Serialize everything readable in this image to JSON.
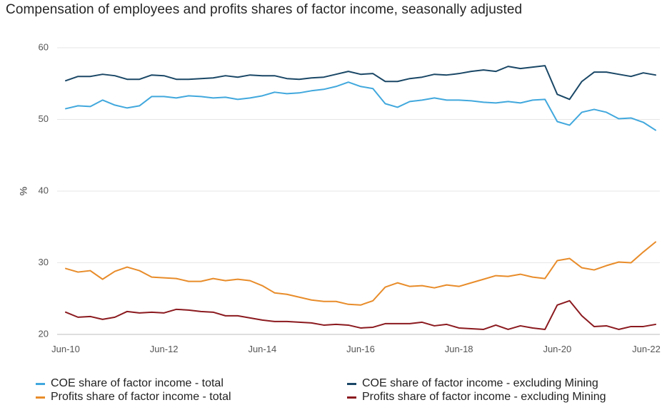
{
  "chart_data": {
    "type": "line",
    "title": "Compensation of employees and profits shares of factor income, seasonally adjusted",
    "ylabel": "%",
    "ylim": [
      20,
      60
    ],
    "yticks": [
      20,
      30,
      40,
      50,
      60
    ],
    "grid": true,
    "legend_position": "bottom",
    "x_start_label": "Jun-10",
    "x_tick_labels": [
      "Jun-10",
      "Jun-12",
      "Jun-14",
      "Jun-16",
      "Jun-18",
      "Jun-20",
      "Jun-22"
    ],
    "x_tick_index": [
      0,
      8,
      16,
      24,
      32,
      40,
      48
    ],
    "series": [
      {
        "name": "COE share of factor income - total",
        "color": "#41A8DD",
        "values": [
          51.5,
          51.9,
          51.8,
          52.7,
          52.0,
          51.6,
          51.9,
          53.2,
          53.2,
          53.0,
          53.3,
          53.2,
          53.0,
          53.1,
          52.8,
          53.0,
          53.3,
          53.8,
          53.6,
          53.7,
          54.0,
          54.2,
          54.6,
          55.2,
          54.6,
          54.3,
          52.2,
          51.7,
          52.5,
          52.7,
          53.0,
          52.7,
          52.7,
          52.6,
          52.4,
          52.3,
          52.5,
          52.3,
          52.7,
          52.8,
          49.7,
          49.2,
          51.0,
          51.4,
          51.0,
          50.1,
          50.2,
          49.6,
          48.5
        ]
      },
      {
        "name": "COE share of factor income - excluding Mining",
        "color": "#1A4766",
        "values": [
          55.4,
          56.0,
          56.0,
          56.3,
          56.1,
          55.6,
          55.6,
          56.2,
          56.1,
          55.6,
          55.6,
          55.7,
          55.8,
          56.1,
          55.9,
          56.2,
          56.1,
          56.1,
          55.7,
          55.6,
          55.8,
          55.9,
          56.3,
          56.7,
          56.3,
          56.4,
          55.3,
          55.3,
          55.7,
          55.9,
          56.3,
          56.2,
          56.4,
          56.7,
          56.9,
          56.7,
          57.4,
          57.1,
          57.3,
          57.5,
          53.5,
          52.8,
          55.3,
          56.6,
          56.6,
          56.3,
          56.0,
          56.5,
          56.2
        ]
      },
      {
        "name": "Profits share of factor income - total",
        "color": "#E88C2A",
        "values": [
          29.2,
          28.7,
          28.9,
          27.7,
          28.8,
          29.4,
          28.9,
          28.0,
          27.9,
          27.8,
          27.4,
          27.4,
          27.8,
          27.5,
          27.7,
          27.5,
          26.8,
          25.8,
          25.6,
          25.2,
          24.8,
          24.6,
          24.6,
          24.2,
          24.1,
          24.7,
          26.6,
          27.2,
          26.7,
          26.8,
          26.5,
          26.9,
          26.7,
          27.2,
          27.7,
          28.2,
          28.1,
          28.4,
          28.0,
          27.8,
          30.3,
          30.6,
          29.3,
          29.0,
          29.6,
          30.1,
          30.0,
          31.5,
          32.9
        ]
      },
      {
        "name": "Profits share of factor income - excluding Mining",
        "color": "#8B1A1F",
        "values": [
          23.1,
          22.4,
          22.5,
          22.1,
          22.4,
          23.2,
          23.0,
          23.1,
          23.0,
          23.5,
          23.4,
          23.2,
          23.1,
          22.6,
          22.6,
          22.3,
          22.0,
          21.8,
          21.8,
          21.7,
          21.6,
          21.3,
          21.4,
          21.3,
          20.9,
          21.0,
          21.5,
          21.5,
          21.5,
          21.7,
          21.2,
          21.4,
          20.9,
          20.8,
          20.7,
          21.3,
          20.7,
          21.2,
          20.9,
          20.7,
          24.1,
          24.7,
          22.6,
          21.1,
          21.2,
          20.7,
          21.1,
          21.1,
          21.4
        ]
      }
    ]
  }
}
